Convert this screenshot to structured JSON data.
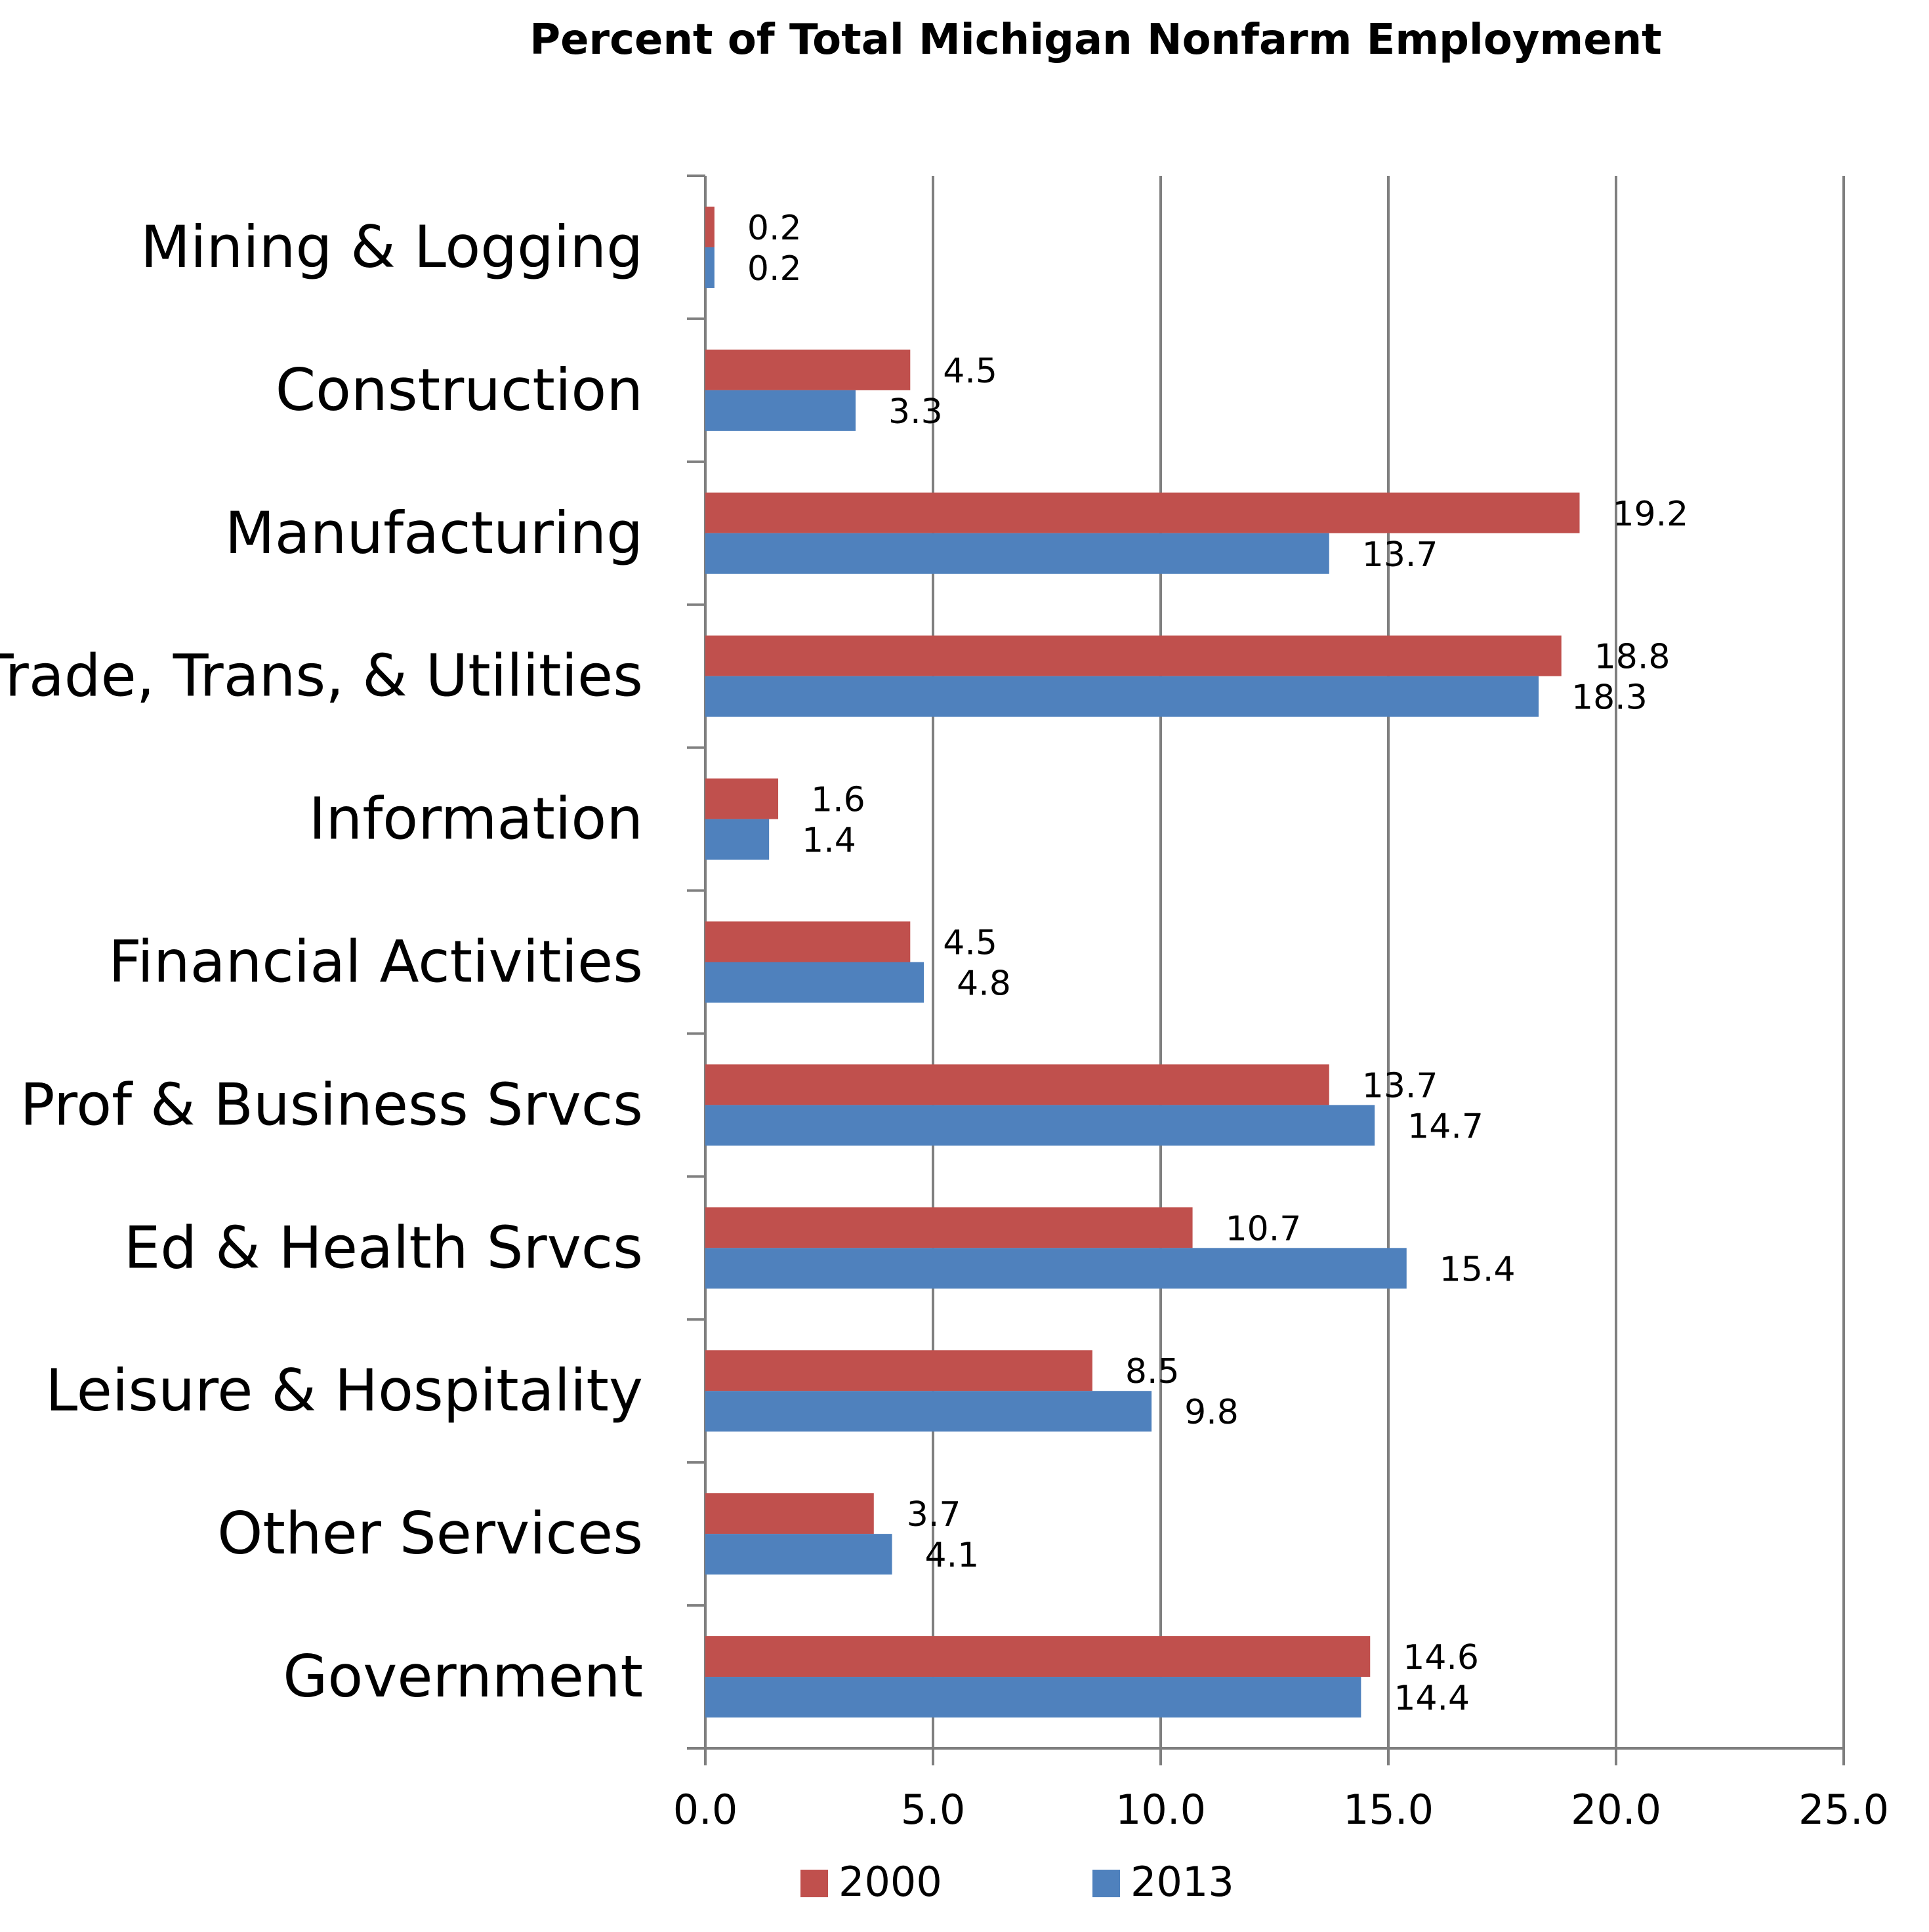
{
  "chart_data": {
    "type": "bar",
    "orientation": "horizontal",
    "title": "Percent of Total Michigan Nonfarm Employment",
    "categories": [
      "Mining & Logging",
      "Construction",
      "Manufacturing",
      "Trade, Trans, & Utilities",
      "Information",
      "Financial Activities",
      "Prof & Business Srvcs",
      "Ed & Health Srvcs",
      "Leisure & Hospitality",
      "Other Services",
      "Government"
    ],
    "series": [
      {
        "name": "2000",
        "color": "#c0504d",
        "values": [
          0.2,
          4.5,
          19.2,
          18.8,
          1.6,
          4.5,
          13.7,
          10.7,
          8.5,
          3.7,
          14.6
        ],
        "labels": [
          "0.2",
          "4.5",
          "19.2",
          "18.8",
          "1.6",
          "4.5",
          "13.7",
          "10.7",
          "8.5",
          "3.7",
          "14.6"
        ]
      },
      {
        "name": "2013",
        "color": "#4f81bd",
        "values": [
          0.2,
          3.3,
          13.7,
          18.3,
          1.4,
          4.8,
          14.7,
          15.4,
          9.8,
          4.1,
          14.4
        ],
        "labels": [
          "0.2",
          "3.3",
          "13.7",
          "18.3",
          "1.4",
          "4.8",
          "14.7",
          "15.4",
          "9.8",
          "4.1",
          "14.4"
        ]
      }
    ],
    "xlim": [
      0,
      25
    ],
    "xticks": [
      "0.0",
      "5.0",
      "10.0",
      "15.0",
      "20.0",
      "25.0"
    ],
    "grid": true,
    "legend": "bottom",
    "axis_color": "#7f7f7f"
  }
}
